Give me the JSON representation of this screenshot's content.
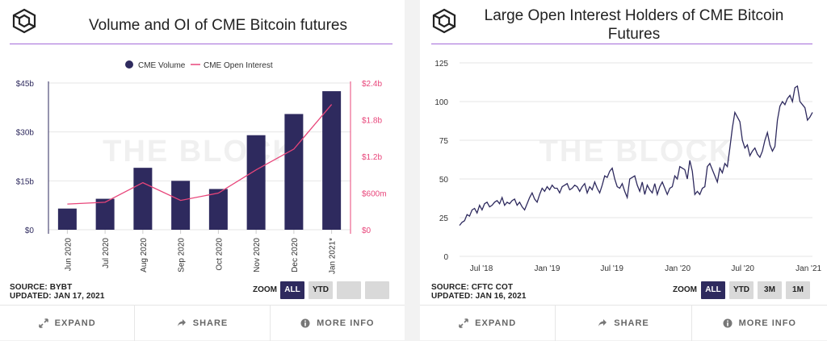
{
  "left": {
    "title": "Volume and OI of CME Bitcoin futures",
    "source": "SOURCE: BYBT",
    "updated": "UPDATED: JAN 17, 2021",
    "zoom_label": "ZOOM",
    "zoom_buttons": [
      "ALL",
      "YTD",
      "",
      ""
    ],
    "footer": {
      "expand": "EXPAND",
      "share": "SHARE",
      "more_info": "MORE INFO"
    }
  },
  "right": {
    "title_line1": "Large Open Interest Holders of CME Bitcoin",
    "title_line2": "Futures",
    "source": "SOURCE: CFTC COT",
    "updated": "UPDATED: JAN 16, 2021",
    "zoom_label": "ZOOM",
    "zoom_buttons": [
      "ALL",
      "YTD",
      "3M",
      "1M"
    ],
    "footer": {
      "expand": "EXPAND",
      "share": "SHARE",
      "more_info": "MORE INFO"
    }
  },
  "watermark": "THE BLOCK",
  "colors": {
    "bar": "#2e2a5e",
    "oi_line": "#e8457a",
    "title_rule": "#a46bd9",
    "line": "#2e2a5e"
  },
  "chart_data": [
    {
      "type": "bar",
      "title": "Volume and OI of CME Bitcoin futures",
      "legend": [
        "CME Volume",
        "CME Open Interest"
      ],
      "legend_position": "top",
      "categories": [
        "Jun 2020",
        "Jul 2020",
        "Aug 2020",
        "Sep 2020",
        "Oct 2020",
        "Nov 2020",
        "Dec 2020",
        "Jan 2021*"
      ],
      "y_ticks_left": [
        "$0",
        "$15b",
        "$30b",
        "$45b"
      ],
      "y_ticks_right": [
        "$0",
        "$600m",
        "$1.2b",
        "$1.8b",
        "$2.4b"
      ],
      "ylim_left": [
        0,
        45
      ],
      "ylim_right": [
        0,
        2.4
      ],
      "series": [
        {
          "name": "CME Volume",
          "type": "bar",
          "axis": "left",
          "unit": "$b",
          "values": [
            6.5,
            9.5,
            19,
            15,
            12.5,
            29,
            35.5,
            42.5
          ]
        },
        {
          "name": "CME Open Interest",
          "type": "line",
          "axis": "right",
          "unit": "$b",
          "values": [
            0.42,
            0.45,
            0.77,
            0.48,
            0.6,
            0.98,
            1.32,
            2.05
          ]
        }
      ]
    },
    {
      "type": "line",
      "title": "Large Open Interest Holders of CME Bitcoin Futures",
      "x_ticks": [
        "Jul '18",
        "Jan '19",
        "Jul '19",
        "Jan '20",
        "Jul '20",
        "Jan '21"
      ],
      "y_ticks": [
        "0",
        "25",
        "50",
        "75",
        "100",
        "125"
      ],
      "ylim": [
        0,
        125
      ],
      "grid": true,
      "series": [
        {
          "name": "",
          "x_start": "2018-05-01",
          "x_step_days": 7,
          "values": [
            20,
            22,
            23,
            27,
            26,
            30,
            31,
            28,
            33,
            30,
            34,
            35,
            32,
            33,
            35,
            36,
            34,
            38,
            33,
            35,
            34,
            36,
            37,
            33,
            35,
            32,
            30,
            34,
            38,
            41,
            37,
            35,
            40,
            44,
            42,
            45,
            43,
            46,
            44,
            44,
            41,
            45,
            46,
            47,
            43,
            44,
            46,
            45,
            42,
            45,
            47,
            41,
            45,
            43,
            48,
            44,
            41,
            46,
            52,
            51,
            55,
            57,
            50,
            45,
            44,
            47,
            42,
            38,
            50,
            51,
            52,
            46,
            42,
            48,
            40,
            46,
            43,
            41,
            47,
            40,
            45,
            48,
            44,
            40,
            44,
            45,
            52,
            50,
            58,
            57,
            56,
            50,
            62,
            55,
            40,
            42,
            40,
            44,
            45,
            58,
            60,
            56,
            52,
            48,
            57,
            54,
            60,
            58,
            70,
            83,
            93,
            90,
            87,
            75,
            70,
            72,
            65,
            68,
            70,
            66,
            64,
            68,
            75,
            80,
            72,
            68,
            71,
            88,
            97,
            100,
            98,
            102,
            104,
            100,
            109,
            110,
            100,
            98,
            96,
            88,
            90,
            93
          ]
        }
      ]
    }
  ]
}
